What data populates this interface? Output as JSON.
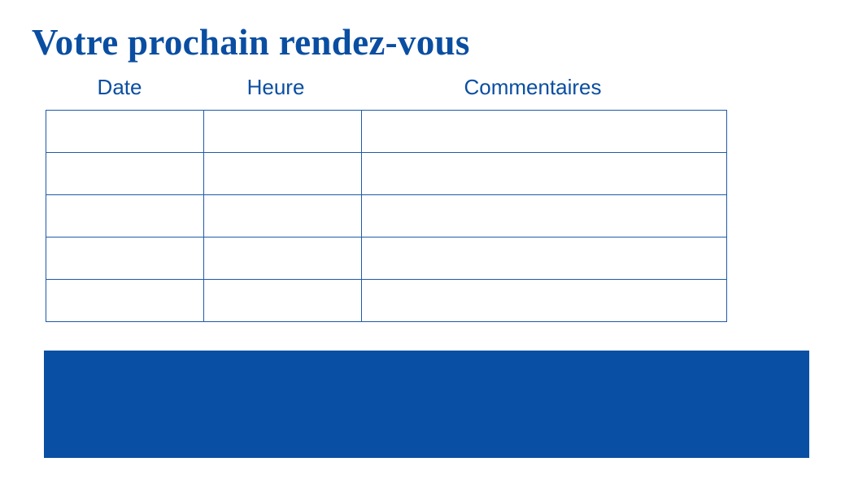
{
  "title": "Votre prochain rendez-vous",
  "columns": [
    "Date",
    "Heure",
    "Commentaires"
  ],
  "rows": [
    [
      "",
      "",
      ""
    ],
    [
      "",
      "",
      ""
    ],
    [
      "",
      "",
      ""
    ],
    [
      "",
      "",
      ""
    ],
    [
      "",
      "",
      ""
    ]
  ],
  "colors": {
    "accent": "#0a4ea2",
    "banner": "#094fa3"
  }
}
